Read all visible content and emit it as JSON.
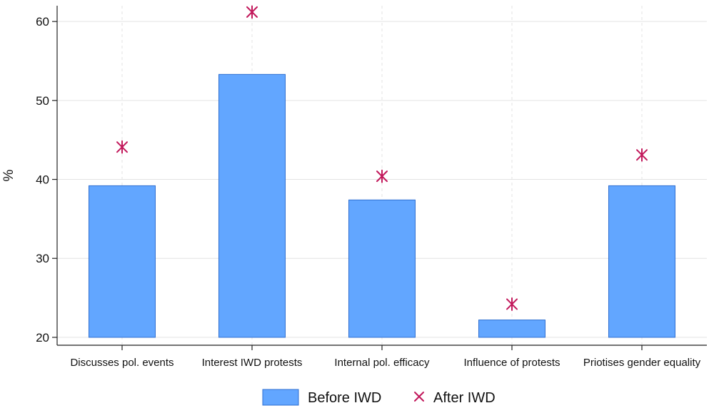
{
  "chart_data": {
    "type": "bar",
    "title": "",
    "xlabel": "",
    "ylabel": "%",
    "ylim": [
      19,
      62
    ],
    "yticks": [
      20,
      30,
      40,
      50,
      60
    ],
    "grid": true,
    "legend_position": "bottom-center",
    "categories": [
      "Discusses pol. events",
      "Interest IWD protests",
      "Internal pol. efficacy",
      "Influence of protests",
      "Priotises gender equality"
    ],
    "series": [
      {
        "name": "Before IWD",
        "kind": "bar",
        "color": "#62a6ff",
        "values": [
          39.2,
          53.3,
          37.4,
          22.2,
          39.2
        ]
      },
      {
        "name": "After IWD",
        "kind": "marker",
        "color": "#c2185b",
        "values": [
          44.1,
          61.2,
          40.4,
          24.2,
          43.1
        ]
      }
    ]
  }
}
